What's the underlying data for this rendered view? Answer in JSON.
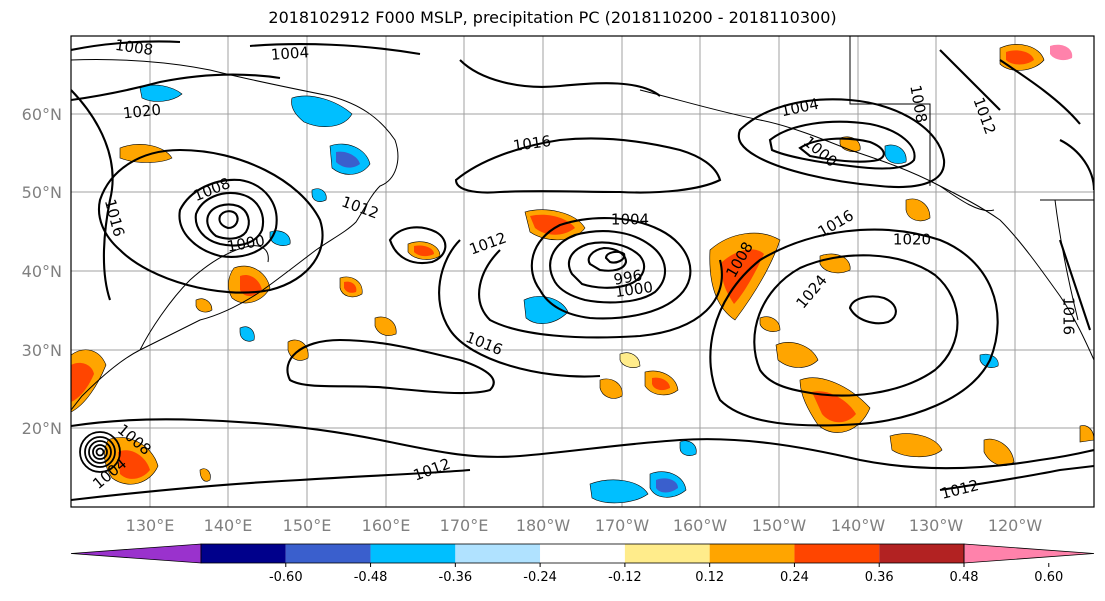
{
  "title": "2018102912 F000 MSLP, precipitation PC (2018110200 - 2018110300)",
  "lat_labels": [
    "60°N",
    "50°N",
    "40°N",
    "30°N",
    "20°N"
  ],
  "lon_labels": [
    "130°E",
    "140°E",
    "150°E",
    "160°E",
    "170°E",
    "180°W",
    "170°W",
    "160°W",
    "150°W",
    "140°W",
    "130°W",
    "120°W"
  ],
  "isobar_labels": [
    "1008",
    "1004",
    "1020",
    "1016",
    "1008",
    "1012",
    "1000",
    "1016",
    "1012",
    "1004",
    "996",
    "1000",
    "1016",
    "1008",
    "1024",
    "1004",
    "1000",
    "1016",
    "1020",
    "1008",
    "1012",
    "1016",
    "1008",
    "1004",
    "1012",
    "1012"
  ],
  "colorbar": {
    "colors": [
      "#9a32cd",
      "#00008b",
      "#3a5fcd",
      "#00bfff",
      "#b0e2ff",
      "#ffffff",
      "#ffec8b",
      "#ffa500",
      "#ff4500",
      "#b22222",
      "#ff82ab"
    ],
    "tick_labels": [
      "-0.60",
      "-0.48",
      "-0.36",
      "-0.24",
      "-0.12",
      "0.12",
      "0.24",
      "0.36",
      "0.48",
      "0.60"
    ]
  }
}
